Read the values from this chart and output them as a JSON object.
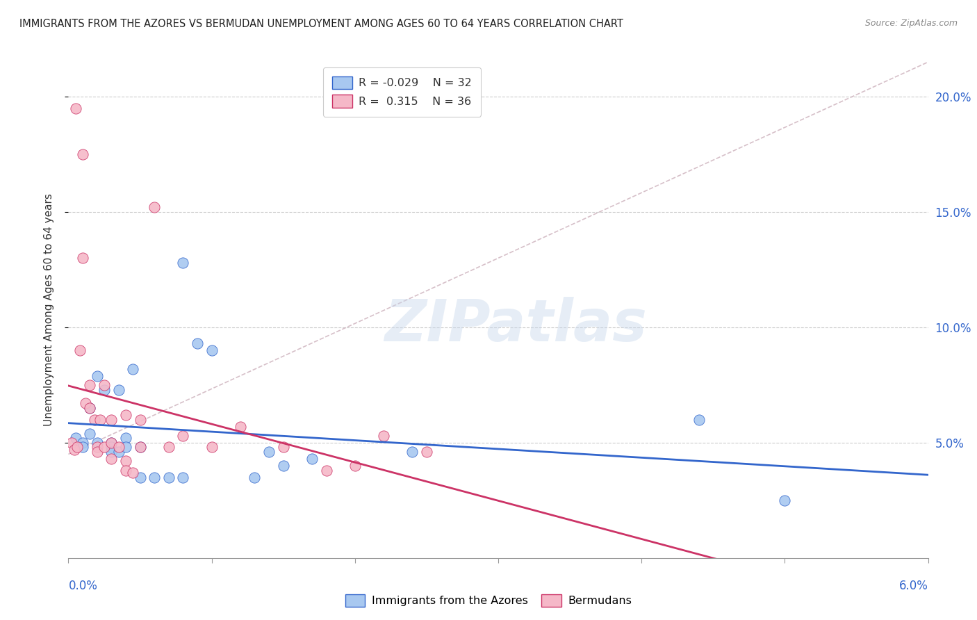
{
  "title": "IMMIGRANTS FROM THE AZORES VS BERMUDAN UNEMPLOYMENT AMONG AGES 60 TO 64 YEARS CORRELATION CHART",
  "source": "Source: ZipAtlas.com",
  "ylabel": "Unemployment Among Ages 60 to 64 years",
  "xlim": [
    0.0,
    0.06
  ],
  "ylim": [
    0.0,
    0.215
  ],
  "yticks": [
    0.05,
    0.1,
    0.15,
    0.2
  ],
  "ytick_labels": [
    "5.0%",
    "10.0%",
    "15.0%",
    "20.0%"
  ],
  "xticks": [
    0.0,
    0.01,
    0.02,
    0.03,
    0.04,
    0.05,
    0.06
  ],
  "color_blue": "#a8c8f0",
  "color_pink": "#f5b8c8",
  "line_color_blue": "#3366cc",
  "line_color_pink": "#cc3366",
  "diag_color": "#ccb0bb",
  "watermark": "ZIPatlas",
  "azores_x": [
    0.0005,
    0.001,
    0.001,
    0.0015,
    0.0015,
    0.002,
    0.002,
    0.0025,
    0.003,
    0.003,
    0.003,
    0.0035,
    0.0035,
    0.004,
    0.004,
    0.0045,
    0.005,
    0.005,
    0.006,
    0.007,
    0.008,
    0.008,
    0.009,
    0.01,
    0.013,
    0.014,
    0.015,
    0.017,
    0.024,
    0.044,
    0.05
  ],
  "azores_y": [
    0.052,
    0.05,
    0.048,
    0.054,
    0.065,
    0.05,
    0.079,
    0.073,
    0.05,
    0.048,
    0.046,
    0.073,
    0.046,
    0.052,
    0.048,
    0.082,
    0.048,
    0.035,
    0.035,
    0.035,
    0.128,
    0.035,
    0.093,
    0.09,
    0.035,
    0.046,
    0.04,
    0.043,
    0.046,
    0.06,
    0.025
  ],
  "bermuda_x": [
    0.0002,
    0.0004,
    0.0005,
    0.0006,
    0.0008,
    0.001,
    0.001,
    0.0012,
    0.0015,
    0.0015,
    0.0018,
    0.002,
    0.002,
    0.0022,
    0.0025,
    0.0025,
    0.003,
    0.003,
    0.003,
    0.0035,
    0.004,
    0.004,
    0.004,
    0.0045,
    0.005,
    0.005,
    0.006,
    0.007,
    0.008,
    0.01,
    0.012,
    0.015,
    0.018,
    0.02,
    0.022,
    0.025
  ],
  "bermuda_y": [
    0.05,
    0.047,
    0.195,
    0.048,
    0.09,
    0.175,
    0.13,
    0.067,
    0.075,
    0.065,
    0.06,
    0.048,
    0.046,
    0.06,
    0.075,
    0.048,
    0.05,
    0.06,
    0.043,
    0.048,
    0.042,
    0.038,
    0.062,
    0.037,
    0.06,
    0.048,
    0.152,
    0.048,
    0.053,
    0.048,
    0.057,
    0.048,
    0.038,
    0.04,
    0.053,
    0.046
  ]
}
